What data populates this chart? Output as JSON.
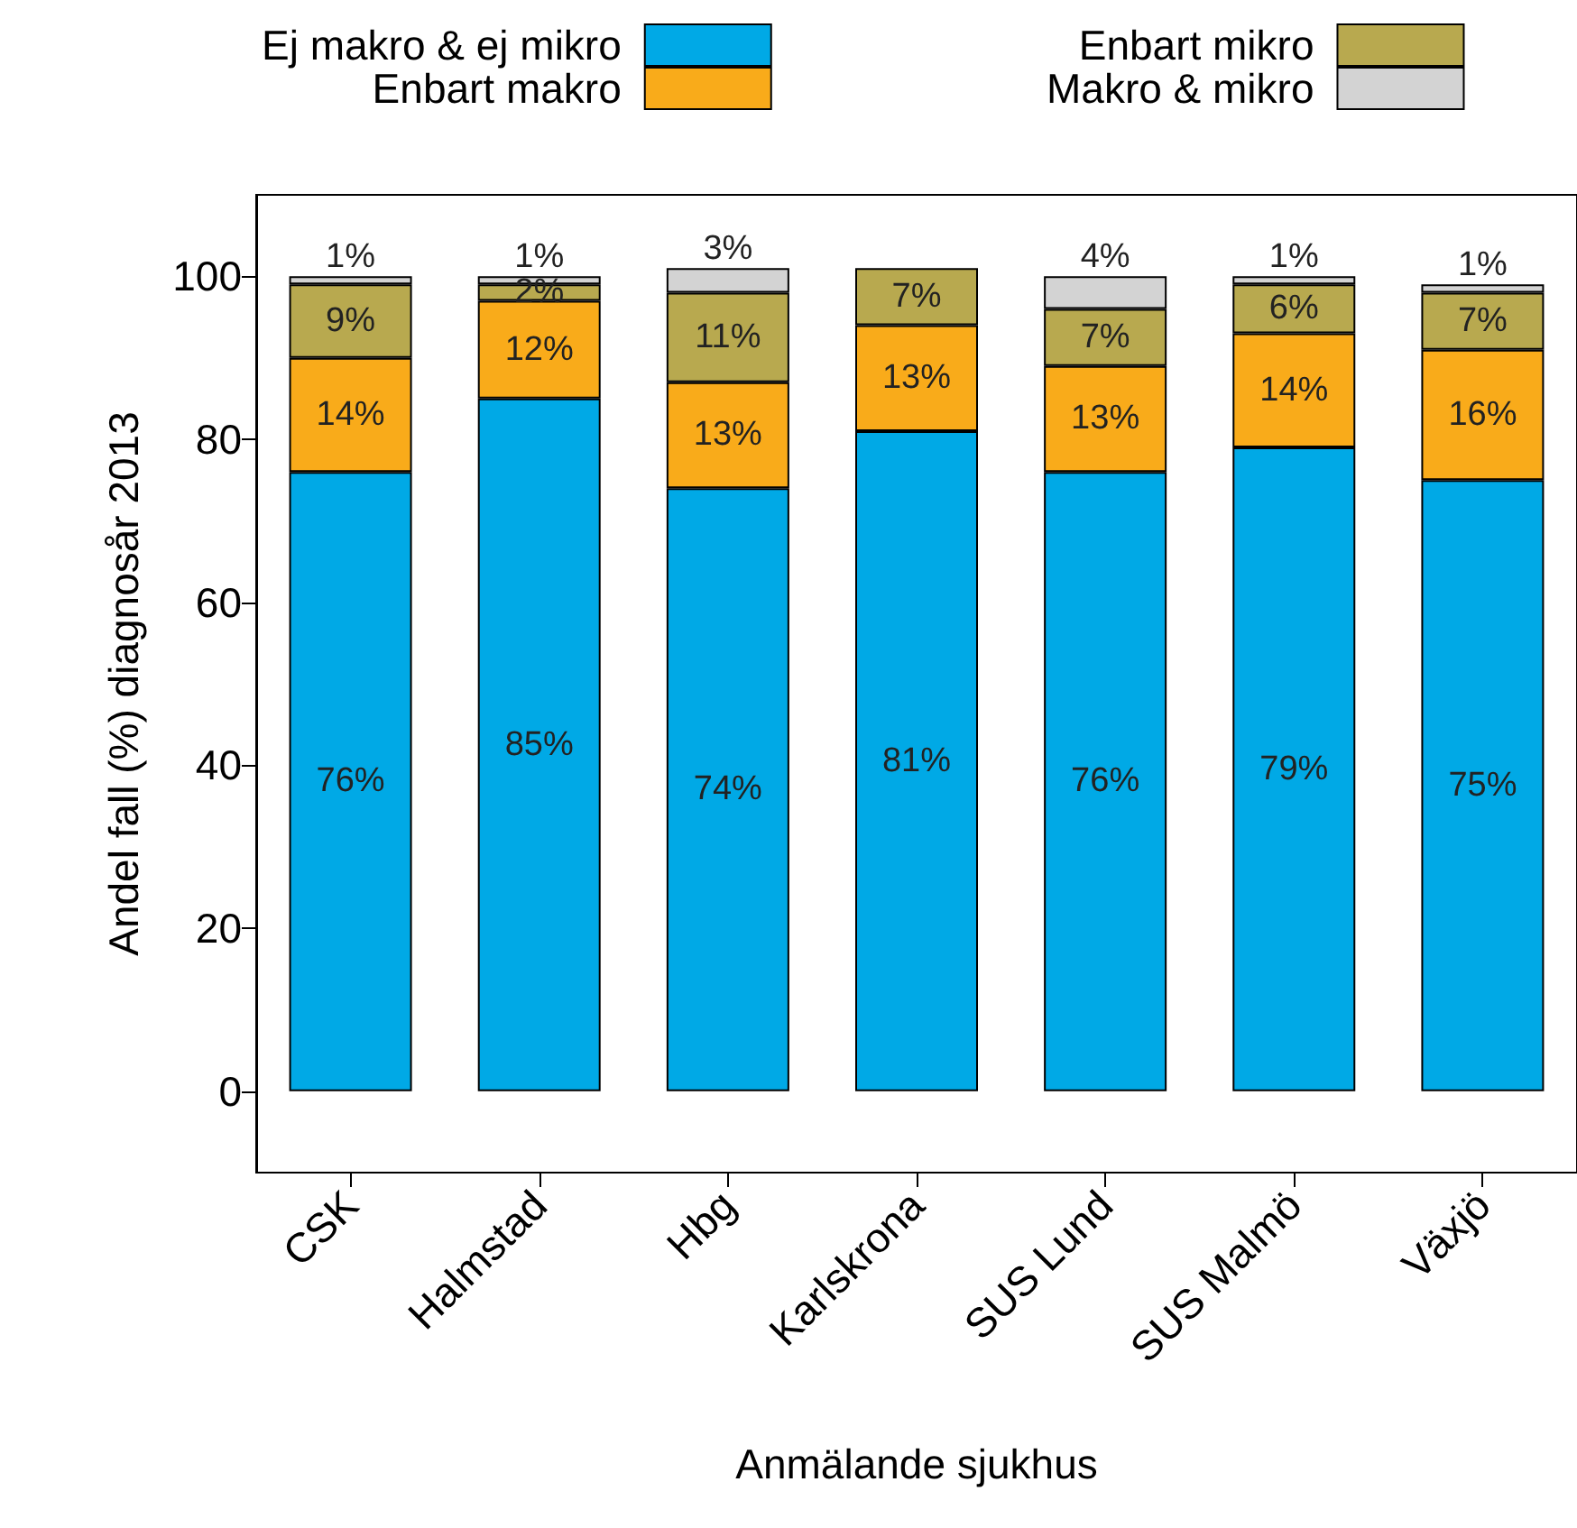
{
  "chart_data": {
    "type": "bar",
    "stacked": true,
    "xlabel": "Anmälande sjukhus",
    "ylabel": "Andel fall (%) diagnosår 2013",
    "categories": [
      "CSK",
      "Halmstad",
      "Hbg",
      "Karlskrona",
      "SUS Lund",
      "SUS Malmö",
      "Växjö"
    ],
    "series": [
      {
        "name": "Ej makro & ej mikro",
        "color": "#00a9e6",
        "values": [
          76,
          85,
          74,
          81,
          76,
          79,
          75
        ],
        "value_labels": [
          "76%",
          "85%",
          "74%",
          "81%",
          "76%",
          "79%",
          "75%"
        ]
      },
      {
        "name": "Enbart makro",
        "color": "#f9ab1a",
        "values": [
          14,
          12,
          13,
          13,
          13,
          14,
          16
        ],
        "value_labels": [
          "14%",
          "12%",
          "13%",
          "13%",
          "13%",
          "14%",
          "16%"
        ]
      },
      {
        "name": "Enbart mikro",
        "color": "#b8a94f",
        "values": [
          9,
          2,
          11,
          7,
          7,
          6,
          7
        ],
        "value_labels": [
          "9%",
          "2%",
          "11%",
          "7%",
          "7%",
          "6%",
          "7%"
        ]
      },
      {
        "name": "Makro & mikro",
        "color": "#d3d3d3",
        "values": [
          1,
          1,
          3,
          null,
          4,
          1,
          1
        ],
        "value_labels": [
          "1%",
          "1%",
          "3%",
          null,
          "4%",
          "1%",
          "1%"
        ]
      }
    ],
    "ylim": [
      -10,
      110
    ],
    "yticks": [
      0,
      20,
      40,
      60,
      80,
      100
    ],
    "grid": false,
    "legend": "top"
  }
}
